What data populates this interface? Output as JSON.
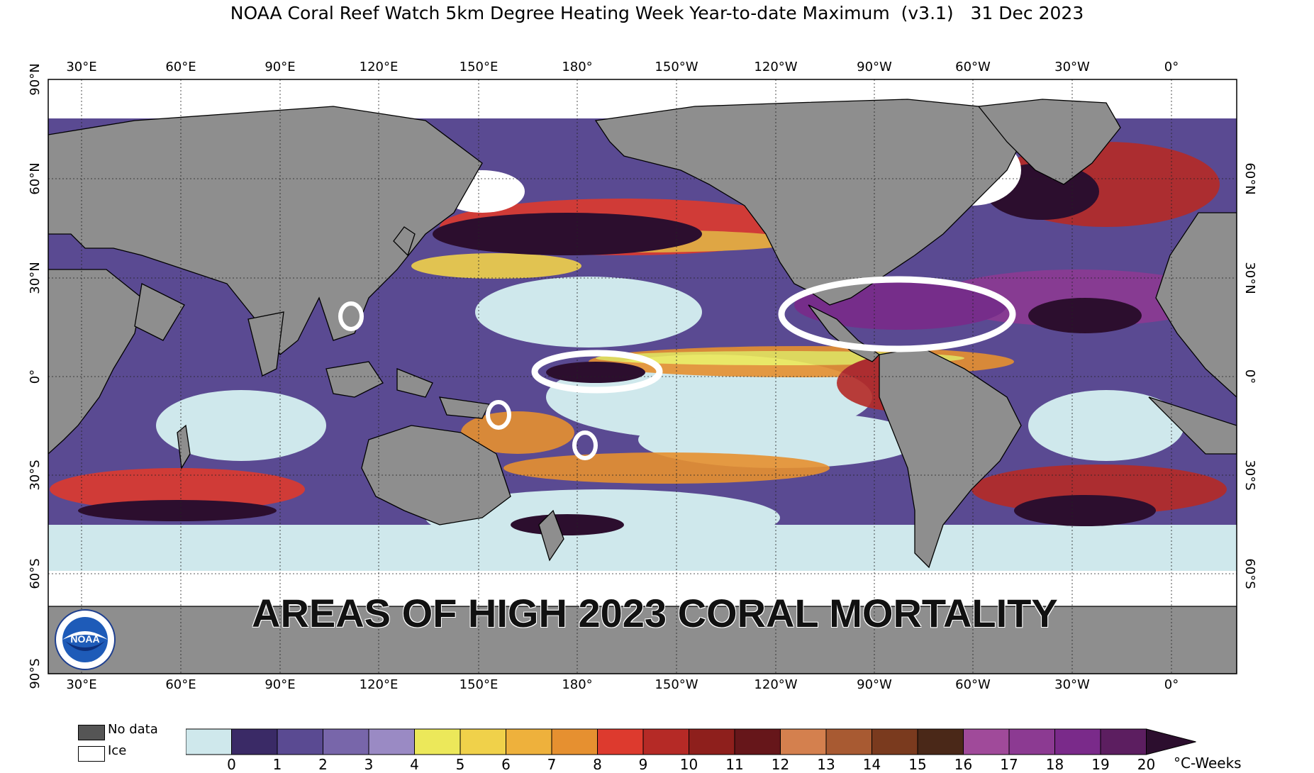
{
  "title": "NOAA Coral Reef Watch 5km Degree Heating Week Year-to-date Maximum  (v3.1)   31 Dec 2023",
  "banner": "AREAS OF HIGH 2023 CORAL MORTALITY",
  "logo_text": "NOAA",
  "lon_labels": [
    "30°E",
    "60°E",
    "90°E",
    "120°E",
    "150°E",
    "180°",
    "150°W",
    "120°W",
    "90°W",
    "60°W",
    "30°W",
    "0°"
  ],
  "lat_labels_left": [
    "90°N",
    "60°N",
    "30°N",
    "0°",
    "30°S",
    "60°S",
    "90°S"
  ],
  "lat_labels_right": [
    "60°N",
    "30°N",
    "0°",
    "30°S",
    "60°S"
  ],
  "legend": {
    "no_data": "No data",
    "ice": "Ice",
    "no_data_color": "#555555",
    "ice_color": "#ffffff"
  },
  "colorbar": {
    "unit": "°C-Weeks",
    "ticks": [
      "0",
      "1",
      "2",
      "3",
      "4",
      "5",
      "6",
      "7",
      "8",
      "9",
      "10",
      "11",
      "12",
      "13",
      "14",
      "15",
      "16",
      "17",
      "18",
      "19",
      "20"
    ],
    "colors": [
      "#cfe8ec",
      "#3a2a66",
      "#5a4a92",
      "#7866aa",
      "#9a8ac4",
      "#ece85a",
      "#f0d14a",
      "#eeb13c",
      "#e69030",
      "#dd3a2e",
      "#b52a26",
      "#8e1f1c",
      "#66161a",
      "#d4804e",
      "#a85a32",
      "#7a3a1e",
      "#4a2818",
      "#a04a9a",
      "#8c3a92",
      "#7a2a8a",
      "#5c1e60",
      "#2c0e2e"
    ]
  },
  "highlight_regions": [
    "Caribbean / Gulf of Mexico",
    "Central Equatorial Pacific",
    "Taiwan / South China Sea",
    "Solomon Sea",
    "Fiji / Tonga"
  ],
  "colors": {
    "land": "#8e8e8e",
    "ocean_low": "#cfe8ec",
    "circle": "#ffffff"
  }
}
